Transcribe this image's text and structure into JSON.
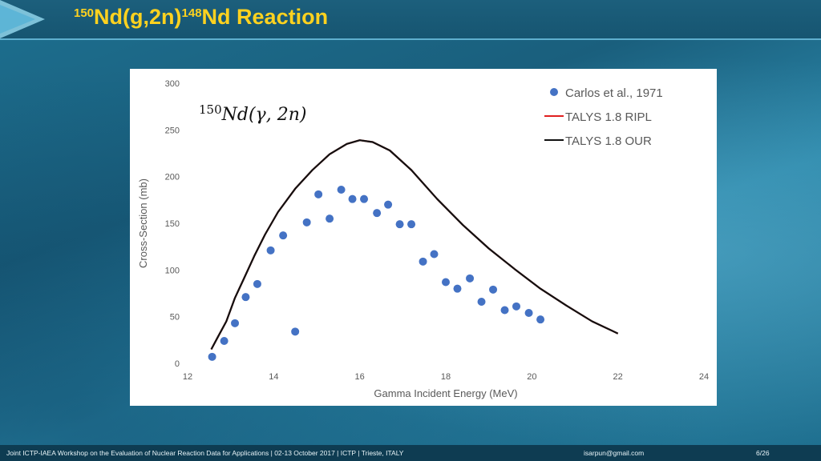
{
  "slide": {
    "title_pre": "150",
    "title_a": "Nd(g,2n)",
    "title_mid": "148",
    "title_b": "Nd Reaction"
  },
  "footer": {
    "workshop": "Joint ICTP-IAEA Workshop on the Evaluation of Nuclear Reaction Data for Applications |  02-13 October 2017   |  ICTP   |  Trieste, ITALY",
    "email": "isarpun@gmail.com",
    "page": "6/26"
  },
  "colors": {
    "title": "#ffd21f",
    "points": "#4472c4",
    "ripl": "#e02020",
    "our": "#111111"
  },
  "chart_data": {
    "type": "scatter",
    "annotation": "150Nd(γ, 2n)",
    "xlabel": "Gamma Incident Energy (MeV)",
    "ylabel": "Cross-Section  (mb)",
    "xlim": [
      12,
      24
    ],
    "ylim": [
      0,
      300
    ],
    "xticks": [
      12,
      14,
      16,
      18,
      20,
      22,
      24
    ],
    "yticks": [
      0,
      50,
      100,
      150,
      200,
      250,
      300
    ],
    "grid": false,
    "legend_position": "top-right",
    "series": [
      {
        "name": "Carlos et al., 1971",
        "kind": "points",
        "x": [
          12.57,
          12.85,
          13.1,
          13.35,
          13.62,
          13.93,
          14.22,
          14.5,
          14.77,
          15.04,
          15.3,
          15.57,
          15.83,
          16.1,
          16.4,
          16.66,
          16.93,
          17.2,
          17.47,
          17.73,
          18.0,
          18.27,
          18.56,
          18.83,
          19.1,
          19.37,
          19.64,
          19.93,
          20.2
        ],
        "y": [
          7,
          24,
          43,
          71,
          85,
          121,
          137,
          34,
          151,
          181,
          155,
          186,
          176,
          176,
          161,
          170,
          149,
          149,
          109,
          117,
          87,
          80,
          91,
          66,
          79,
          57,
          61,
          54,
          47
        ]
      },
      {
        "name": "TALYS 1.8 RIPL",
        "kind": "line",
        "x": [
          12.55,
          12.7,
          12.9,
          13.1,
          13.3,
          13.55,
          13.8,
          14.1,
          14.5,
          14.9,
          15.3,
          15.7,
          16.0,
          16.3,
          16.7,
          17.2,
          17.8,
          18.4,
          19.0,
          19.6,
          20.2,
          20.8,
          21.4,
          22.0
        ],
        "y": [
          15,
          28,
          45,
          70,
          90,
          115,
          138,
          162,
          187,
          207,
          224,
          235,
          239,
          237,
          228,
          207,
          176,
          148,
          123,
          101,
          80,
          62,
          45,
          32
        ]
      },
      {
        "name": "TALYS 1.8 OUR",
        "kind": "line",
        "x": [
          12.55,
          12.7,
          12.9,
          13.1,
          13.3,
          13.55,
          13.8,
          14.1,
          14.5,
          14.9,
          15.3,
          15.7,
          16.0,
          16.3,
          16.7,
          17.2,
          17.8,
          18.4,
          19.0,
          19.6,
          20.2,
          20.8,
          21.4,
          22.0
        ],
        "y": [
          15,
          28,
          45,
          70,
          90,
          115,
          138,
          162,
          187,
          207,
          224,
          235,
          239,
          237,
          228,
          207,
          176,
          148,
          123,
          101,
          80,
          62,
          45,
          32
        ]
      }
    ]
  }
}
